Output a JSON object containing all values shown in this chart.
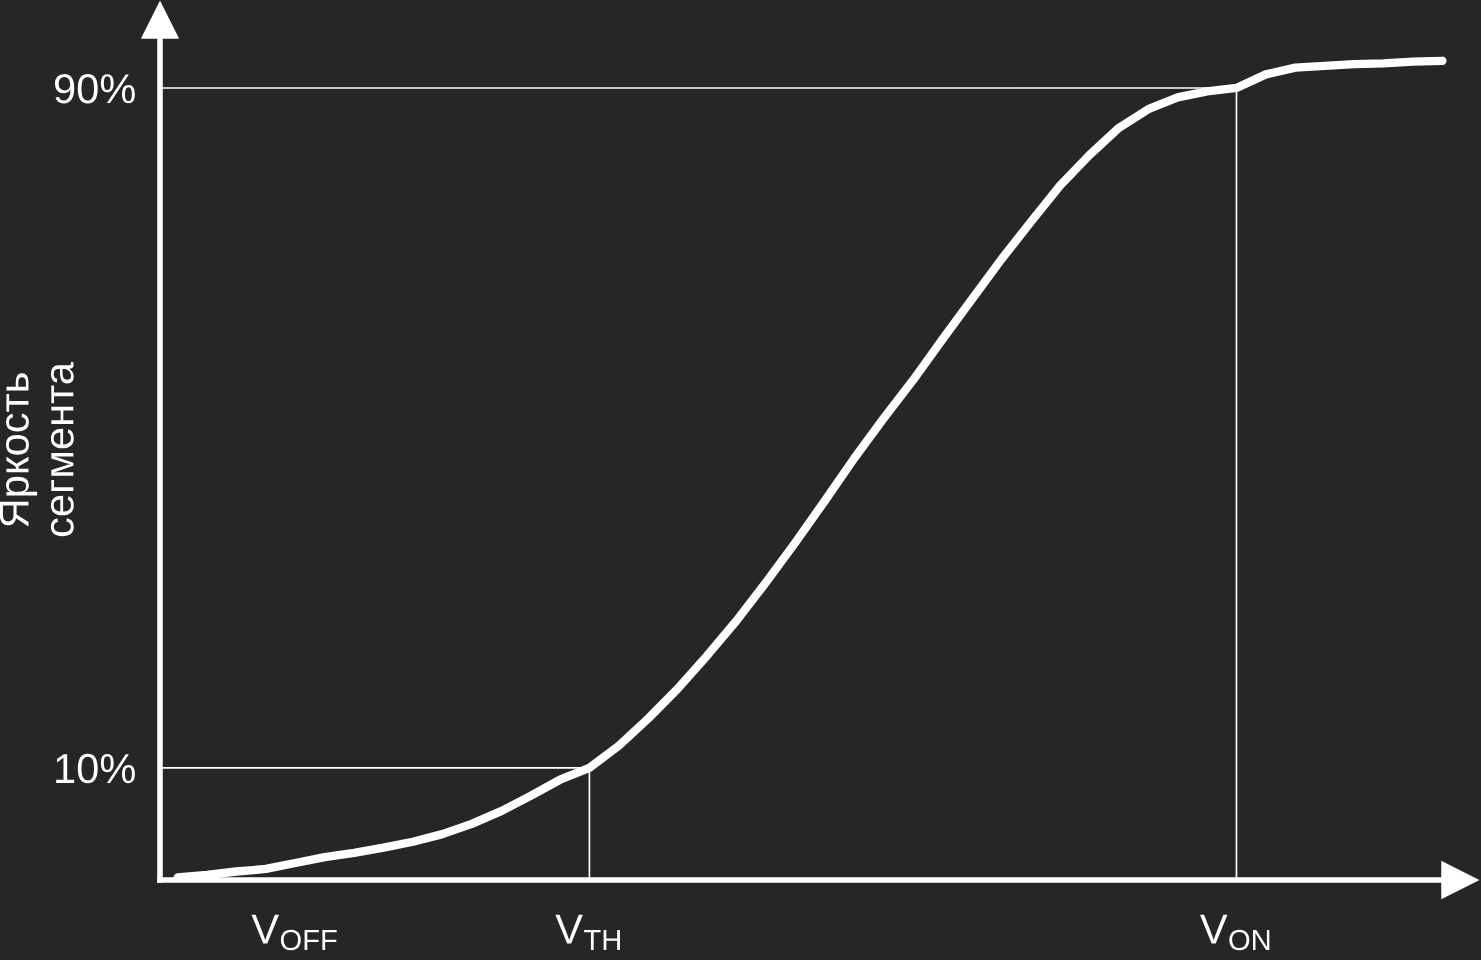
{
  "chart_data": {
    "type": "line",
    "ylabel": "Яркость\nсегмента",
    "categories": [
      null,
      null,
      null,
      null,
      "V$_{OFF}$",
      null,
      null,
      null,
      null,
      null,
      null,
      null,
      null,
      null,
      "V$_{TH}$",
      null,
      null,
      null,
      null,
      null,
      null,
      null,
      null,
      null,
      null,
      null,
      null,
      null,
      null,
      null,
      null,
      null,
      null,
      null,
      null,
      null,
      "V$_{ON}$",
      null,
      null,
      null,
      null,
      null,
      null,
      null
    ],
    "series": [
      {
        "color": "#ffffff",
        "values": [
          -2.9,
          -2.6,
          -2.2,
          -1.9,
          -1.2,
          -0.5,
          0,
          0.6,
          1.3,
          2.2,
          3.4,
          4.9,
          6.7,
          8.6,
          10,
          12.6,
          15.8,
          19.3,
          23.2,
          27.3,
          31.8,
          36.5,
          41.4,
          46.4,
          51.1,
          55.6,
          60.4,
          65.1,
          69.8,
          74.2,
          78.5,
          82.1,
          85.3,
          87.5,
          88.9,
          89.6,
          90,
          91.6,
          92.4,
          92.6,
          92.8,
          92.9,
          93.1,
          93.2
        ]
      }
    ],
    "ylim": [
      -3.2,
      98
    ],
    "yticks": [
      {
        "value": 10,
        "label": "10%"
      },
      {
        "value": 90,
        "label": "90%"
      }
    ],
    "ref_lines": [
      {
        "axis": "y",
        "value": 90,
        "color": "#ffffff"
      },
      {
        "axis": "y",
        "value": 10,
        "color": "#ffffff"
      },
      {
        "axis": "x",
        "value": "V$_{TH}$",
        "color": "#ffffff"
      },
      {
        "axis": "x",
        "value": "V$_{ON}$",
        "color": "#ffffff"
      }
    ],
    "grid": false,
    "legend": false,
    "marker": "none",
    "line_style": "solid"
  }
}
